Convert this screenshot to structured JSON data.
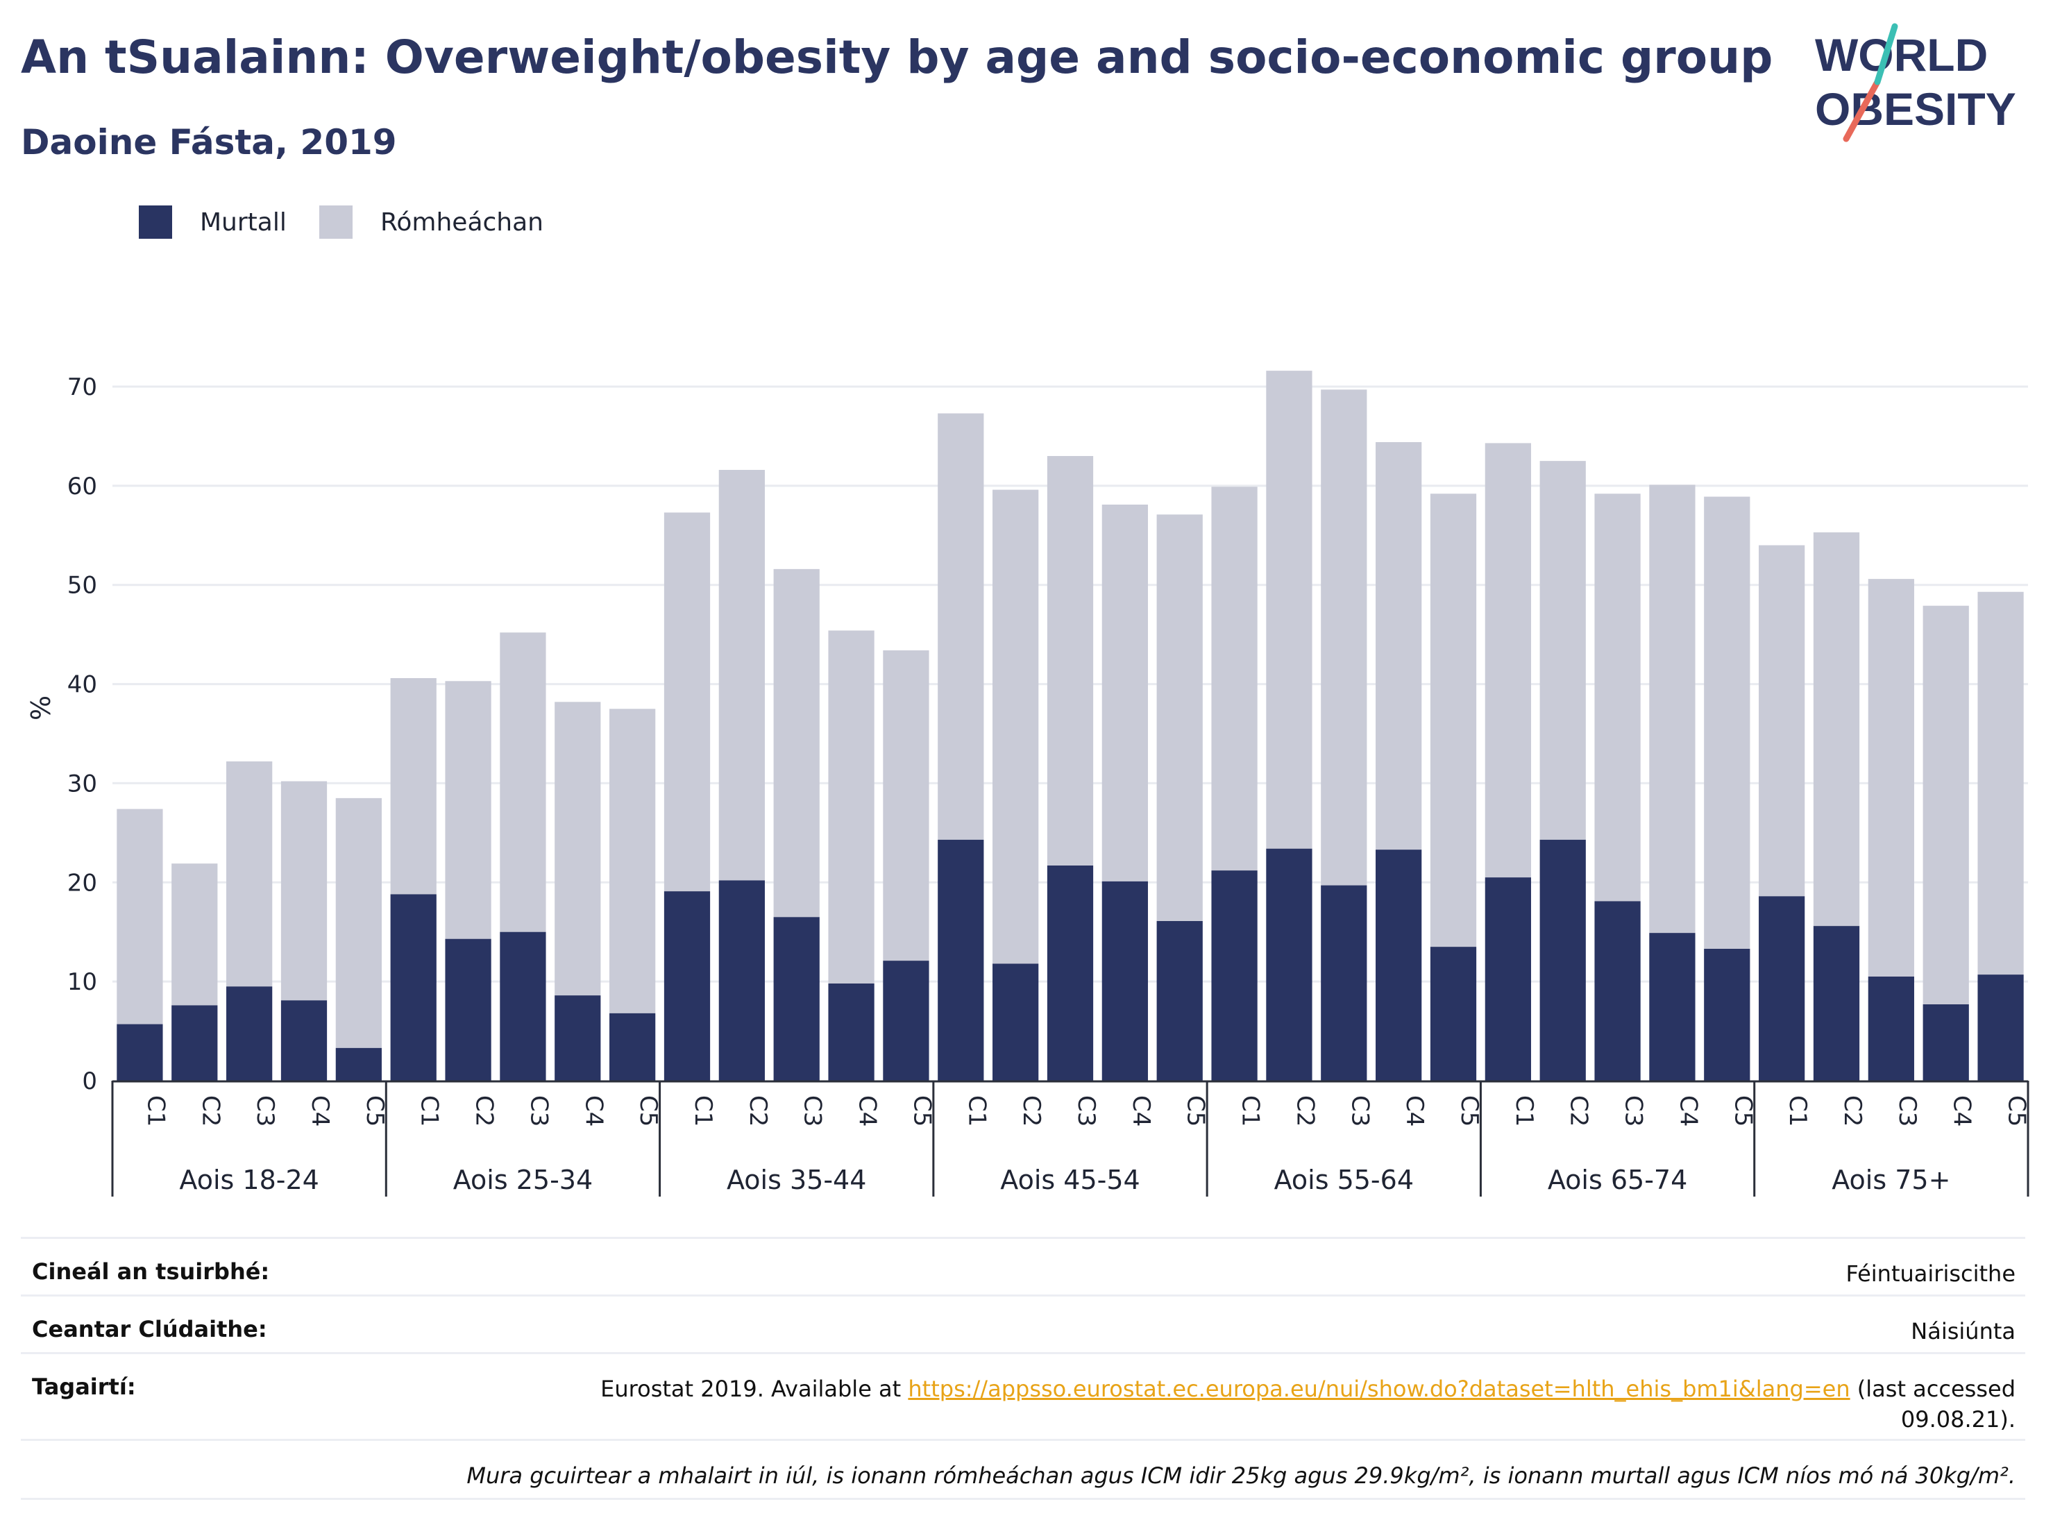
{
  "header": {
    "title": "An tSualainn: Overweight/obesity by age and socio-economic group",
    "subtitle": "Daoine Fásta, 2019"
  },
  "logo": {
    "line1": "WORLD",
    "line2": "OBESITY"
  },
  "colors": {
    "obese": "#293462",
    "overweight": "#c9cbd7",
    "grid": "#e9ebf0",
    "text": "#2b3561"
  },
  "chart_data": {
    "type": "bar",
    "stacked": true,
    "ylabel": "%",
    "ylim": [
      0,
      75
    ],
    "yticks": [
      0,
      10,
      20,
      30,
      40,
      50,
      60,
      70
    ],
    "grid": true,
    "legend_position": "top-left",
    "groups": [
      "Aois 18-24",
      "Aois 25-34",
      "Aois 35-44",
      "Aois 45-54",
      "Aois 55-64",
      "Aois 65-74",
      "Aois 75+"
    ],
    "categories": [
      "C1",
      "C2",
      "C3",
      "C4",
      "C5"
    ],
    "series": [
      {
        "name": "Murtall",
        "color": "#293462",
        "values": [
          [
            5.7,
            7.6,
            9.5,
            8.1,
            3.3
          ],
          [
            18.8,
            14.3,
            15.0,
            8.6,
            6.8
          ],
          [
            19.1,
            20.2,
            16.5,
            9.8,
            12.1
          ],
          [
            24.3,
            11.8,
            21.7,
            20.1,
            16.1
          ],
          [
            21.2,
            23.4,
            19.7,
            23.3,
            13.5
          ],
          [
            20.5,
            24.3,
            18.1,
            14.9,
            13.3
          ],
          [
            18.6,
            15.6,
            10.5,
            7.7,
            10.7
          ]
        ]
      },
      {
        "name": "Rómheáchan",
        "color": "#c9cbd7",
        "values": [
          [
            21.7,
            14.3,
            22.7,
            22.1,
            25.2
          ],
          [
            21.8,
            26.0,
            30.2,
            29.6,
            30.7
          ],
          [
            38.2,
            41.4,
            35.1,
            35.6,
            31.3
          ],
          [
            43.0,
            47.8,
            41.3,
            38.0,
            41.0
          ],
          [
            38.7,
            48.2,
            50.0,
            41.1,
            45.7
          ],
          [
            43.8,
            38.2,
            41.1,
            45.2,
            45.6
          ],
          [
            35.4,
            39.7,
            40.1,
            40.2,
            38.6
          ]
        ]
      }
    ]
  },
  "meta": {
    "survey_key": "Cineál an tsuirbhé:",
    "survey_val": "Féintuairiscithe",
    "coverage_key": "Ceantar Clúdaithe:",
    "coverage_val": "Náisiúnta",
    "ref_key": "Tagairtí:",
    "ref_prefix": "Eurostat 2019. Available at ",
    "ref_link": "https://appsso.eurostat.ec.europa.eu/nui/show.do?dataset=hlth_ehis_bm1i&lang=en",
    "ref_suffix": " (last accessed",
    "ref_date": "09.08.21).",
    "note": "Mura gcuirtear a mhalairt in iúl, is ionann rómheáchan agus ICM idir 25kg agus 29.9kg/m², is ionann murtall agus ICM níos mó ná 30kg/m²."
  }
}
